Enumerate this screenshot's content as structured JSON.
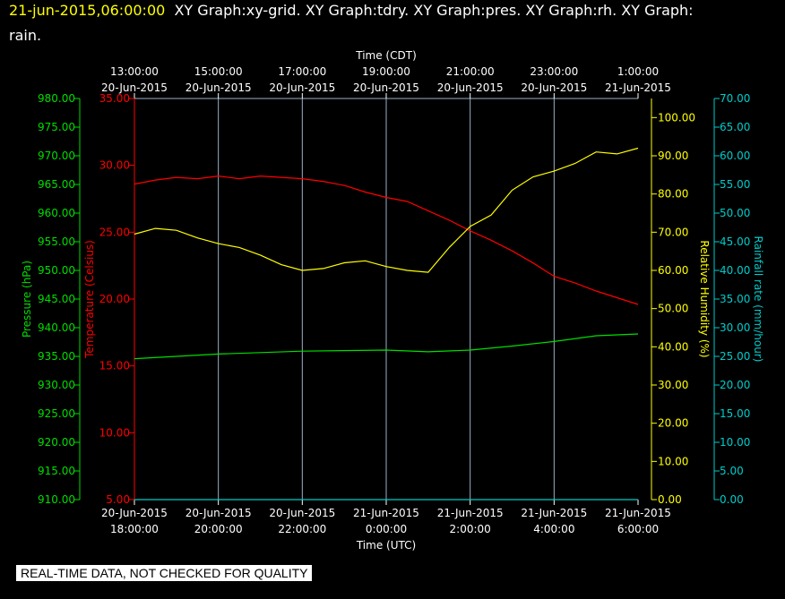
{
  "header": {
    "timestamp": "21-jun-2015,06:00:00",
    "graphs_line1": "XY Graph:xy-grid.  XY Graph:tdry.  XY Graph:pres.  XY Graph:rh.  XY Graph:",
    "graphs_line2": "rain."
  },
  "footer": {
    "disclaimer": "REAL-TIME DATA, NOT CHECKED FOR QUALITY"
  },
  "colors": {
    "temperature": "#ff0000",
    "pressure": "#00dd00",
    "humidity": "#ffff00",
    "rain": "#00cccc",
    "grid": "#9ab0c8",
    "axis_text": "#ffffff"
  },
  "chart_data": {
    "type": "line",
    "grid": true,
    "x_top": {
      "label": "Time (CDT)",
      "ticks": [
        {
          "time": "13:00:00",
          "date": "20-Jun-2015"
        },
        {
          "time": "15:00:00",
          "date": "20-Jun-2015"
        },
        {
          "time": "17:00:00",
          "date": "20-Jun-2015"
        },
        {
          "time": "19:00:00",
          "date": "20-Jun-2015"
        },
        {
          "time": "21:00:00",
          "date": "20-Jun-2015"
        },
        {
          "time": "23:00:00",
          "date": "20-Jun-2015"
        },
        {
          "time": "1:00:00",
          "date": "21-Jun-2015"
        }
      ]
    },
    "x_bottom": {
      "label": "Time (UTC)",
      "range": [
        "2015-06-20 18:00",
        "2015-06-21 06:00"
      ],
      "ticks": [
        {
          "date": "20-Jun-2015",
          "time": "18:00:00"
        },
        {
          "date": "20-Jun-2015",
          "time": "20:00:00"
        },
        {
          "date": "20-Jun-2015",
          "time": "22:00:00"
        },
        {
          "date": "21-Jun-2015",
          "time": "0:00:00"
        },
        {
          "date": "21-Jun-2015",
          "time": "2:00:00"
        },
        {
          "date": "21-Jun-2015",
          "time": "4:00:00"
        },
        {
          "date": "21-Jun-2015",
          "time": "6:00:00"
        }
      ]
    },
    "axes": [
      {
        "id": "pres",
        "label": "Pressure (hPa)",
        "range": [
          910,
          980
        ],
        "ticks": [
          "910.00",
          "915.00",
          "920.00",
          "925.00",
          "930.00",
          "935.00",
          "940.00",
          "945.00",
          "950.00",
          "955.00",
          "960.00",
          "965.00",
          "970.00",
          "975.00",
          "980.00"
        ]
      },
      {
        "id": "tdry",
        "label": "Temperature (Celsius)",
        "range": [
          5,
          35
        ],
        "ticks": [
          "5.00",
          "10.00",
          "15.00",
          "20.00",
          "25.00",
          "30.00",
          "35.00"
        ]
      },
      {
        "id": "rh",
        "label": "Relative Humidity (%)",
        "range": [
          0,
          105
        ],
        "ticks": [
          "0.00",
          "10.00",
          "20.00",
          "30.00",
          "40.00",
          "50.00",
          "60.00",
          "70.00",
          "80.00",
          "90.00",
          "100.00"
        ]
      },
      {
        "id": "rain",
        "label": "Rainfall rate (mm/hour)",
        "range": [
          0,
          70
        ],
        "ticks": [
          "0.00",
          "5.00",
          "10.00",
          "15.00",
          "20.00",
          "25.00",
          "30.00",
          "35.00",
          "40.00",
          "45.00",
          "50.00",
          "55.00",
          "60.00",
          "65.00",
          "70.00"
        ]
      }
    ],
    "series": [
      {
        "axis": "tdry",
        "x": [
          "2015-06-20 18:00",
          "2015-06-20 18:30",
          "2015-06-20 19:00",
          "2015-06-20 19:30",
          "2015-06-20 20:00",
          "2015-06-20 20:30",
          "2015-06-20 21:00",
          "2015-06-20 21:30",
          "2015-06-20 22:00",
          "2015-06-20 22:30",
          "2015-06-20 23:00",
          "2015-06-20 23:30",
          "2015-06-21 00:00",
          "2015-06-21 00:30",
          "2015-06-21 01:00",
          "2015-06-21 01:30",
          "2015-06-21 02:00",
          "2015-06-21 02:30",
          "2015-06-21 03:00",
          "2015-06-21 03:30",
          "2015-06-21 04:00",
          "2015-06-21 04:30",
          "2015-06-21 05:00",
          "2015-06-21 05:30",
          "2015-06-21 06:00"
        ],
        "values": [
          28.6,
          28.9,
          29.1,
          29.0,
          29.2,
          29.0,
          29.2,
          29.1,
          29.0,
          28.8,
          28.5,
          28.0,
          27.6,
          27.3,
          26.6,
          25.9,
          25.1,
          24.4,
          23.6,
          22.7,
          21.7,
          21.2,
          20.6,
          20.1,
          19.6
        ]
      },
      {
        "axis": "pres",
        "x": [
          "2015-06-20 18:00",
          "2015-06-20 20:00",
          "2015-06-20 22:00",
          "2015-06-21 00:00",
          "2015-06-21 01:00",
          "2015-06-21 02:00",
          "2015-06-21 03:00",
          "2015-06-21 04:00",
          "2015-06-21 05:00",
          "2015-06-21 06:00"
        ],
        "values": [
          934.6,
          935.4,
          935.9,
          936.1,
          935.8,
          936.1,
          936.8,
          937.6,
          938.6,
          938.9
        ]
      },
      {
        "axis": "rh",
        "x": [
          "2015-06-20 18:00",
          "2015-06-20 18:30",
          "2015-06-20 19:00",
          "2015-06-20 19:30",
          "2015-06-20 20:00",
          "2015-06-20 20:30",
          "2015-06-20 21:00",
          "2015-06-20 21:30",
          "2015-06-20 22:00",
          "2015-06-20 22:30",
          "2015-06-20 23:00",
          "2015-06-20 23:30",
          "2015-06-21 00:00",
          "2015-06-21 00:30",
          "2015-06-21 01:00",
          "2015-06-21 01:30",
          "2015-06-21 02:00",
          "2015-06-21 02:30",
          "2015-06-21 03:00",
          "2015-06-21 03:30",
          "2015-06-21 04:00",
          "2015-06-21 04:30",
          "2015-06-21 05:00",
          "2015-06-21 05:30",
          "2015-06-21 06:00"
        ],
        "values": [
          69.5,
          71.0,
          70.5,
          68.5,
          67.0,
          66.0,
          64.0,
          61.5,
          60.0,
          60.5,
          62.0,
          62.5,
          61.0,
          60.0,
          59.5,
          66.0,
          71.5,
          74.5,
          81.0,
          84.5,
          86.0,
          88.0,
          91.0,
          90.5,
          92.0
        ]
      },
      {
        "axis": "rain",
        "x": [
          "2015-06-20 18:00",
          "2015-06-21 06:00"
        ],
        "values": [
          0.0,
          0.0
        ]
      }
    ]
  }
}
